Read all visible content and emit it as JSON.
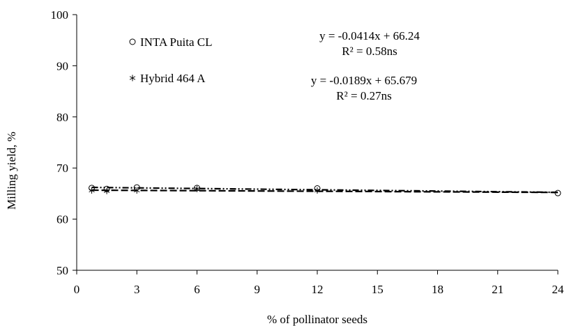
{
  "chart_data": {
    "type": "scatter",
    "xlabel": "% of pollinator seeds",
    "ylabel": "Milling yield, %",
    "xlim": [
      0,
      24
    ],
    "ylim": [
      50,
      100
    ],
    "xticks": [
      0,
      3,
      6,
      9,
      12,
      15,
      18,
      21,
      24
    ],
    "yticks": [
      50,
      60,
      70,
      80,
      90,
      100
    ],
    "grid": false,
    "legend_position": "top-left",
    "series": [
      {
        "name": "INTA Puita CL",
        "marker": "circle",
        "x": [
          0.75,
          1.5,
          3,
          6,
          12,
          24
        ],
        "y": [
          66.1,
          65.9,
          66.2,
          66.1,
          66.0,
          65.1
        ],
        "trendline": {
          "style": "dash-dot",
          "slope": -0.0414,
          "intercept": 66.24,
          "equation": "y = -0.0414x + 66.24",
          "r2_label": "R² = 0.58ns"
        }
      },
      {
        "name": "Hybrid 464 A",
        "marker": "asterisk",
        "x": [
          0.75,
          1.5,
          3,
          6,
          12
        ],
        "y": [
          65.6,
          65.5,
          65.6,
          65.9,
          65.6
        ],
        "trendline": {
          "style": "long-dash",
          "slope": -0.0189,
          "intercept": 65.679,
          "equation": "y = -0.0189x + 65.679",
          "r2_label": "R² = 0.27ns"
        }
      }
    ]
  }
}
